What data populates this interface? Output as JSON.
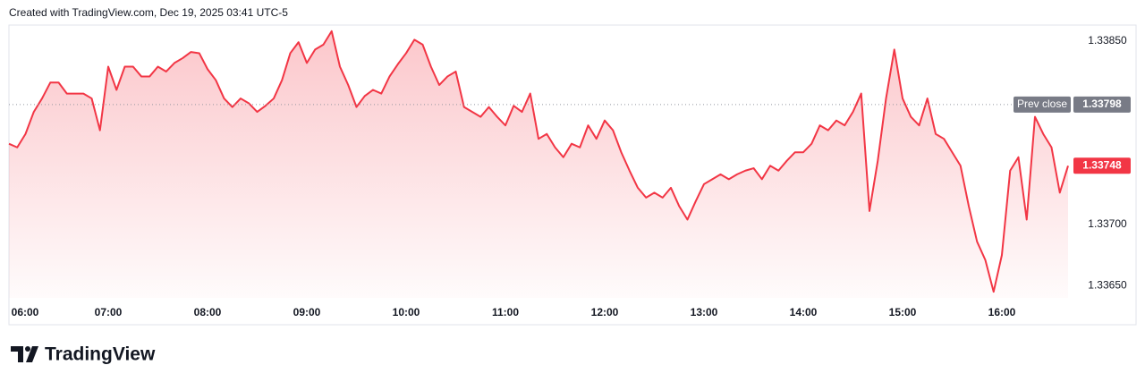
{
  "header": {
    "caption": "Created with TradingView.com, Dec 19, 2025 03:41 UTC-5"
  },
  "chart_data": {
    "type": "area",
    "categories": [
      "06:00",
      null,
      null,
      null,
      null,
      null,
      null,
      null,
      null,
      null,
      null,
      null,
      "07:00",
      null,
      null,
      null,
      null,
      null,
      null,
      null,
      null,
      null,
      null,
      null,
      "08:00",
      null,
      null,
      null,
      null,
      null,
      null,
      null,
      null,
      null,
      null,
      null,
      "09:00",
      null,
      null,
      null,
      null,
      null,
      null,
      null,
      null,
      null,
      null,
      null,
      "10:00",
      null,
      null,
      null,
      null,
      null,
      null,
      null,
      null,
      null,
      null,
      null,
      "11:00",
      null,
      null,
      null,
      null,
      null,
      null,
      null,
      null,
      null,
      null,
      null,
      "12:00",
      null,
      null,
      null,
      null,
      null,
      null,
      null,
      null,
      null,
      null,
      null,
      "13:00",
      null,
      null,
      null,
      null,
      null,
      null,
      null,
      null,
      null,
      null,
      null,
      "14:00",
      null,
      null,
      null,
      null,
      null,
      null,
      null,
      null,
      null,
      null,
      null,
      "15:00",
      null,
      null,
      null,
      null,
      null,
      null,
      null,
      null,
      null,
      null,
      null,
      "16:00",
      null,
      null,
      null,
      null,
      null,
      null,
      null,
      null
    ],
    "series": [
      {
        "color": "#f23645",
        "values": [
          1.33766,
          1.33763,
          1.33774,
          1.33792,
          1.33803,
          1.33816,
          1.33816,
          1.33807,
          1.33807,
          1.33807,
          1.33803,
          1.33777,
          1.33829,
          1.3381,
          1.33829,
          1.33829,
          1.33821,
          1.33821,
          1.33829,
          1.33825,
          1.33832,
          1.33836,
          1.33841,
          1.3384,
          1.33827,
          1.33818,
          1.33803,
          1.33796,
          1.33803,
          1.33799,
          1.33792,
          1.33797,
          1.33803,
          1.33818,
          1.3384,
          1.33849,
          1.33832,
          1.33843,
          1.33847,
          1.33858,
          1.33829,
          1.33814,
          1.33796,
          1.33805,
          1.3381,
          1.33807,
          1.33821,
          1.33831,
          1.3384,
          1.33851,
          1.33847,
          1.33829,
          1.33814,
          1.33821,
          1.33825,
          1.33796,
          1.33792,
          1.33788,
          1.33796,
          1.33788,
          1.33781,
          1.33797,
          1.33792,
          1.33807,
          1.3377,
          1.33774,
          1.33763,
          1.33755,
          1.33766,
          1.33763,
          1.33781,
          1.3377,
          1.33785,
          1.33777,
          1.33759,
          1.33744,
          1.3373,
          1.33722,
          1.33726,
          1.33722,
          1.3373,
          1.33715,
          1.33704,
          1.33719,
          1.33733,
          1.33737,
          1.33741,
          1.33737,
          1.33741,
          1.33744,
          1.33746,
          1.33737,
          1.33748,
          1.33744,
          1.33752,
          1.33759,
          1.33759,
          1.33766,
          1.33781,
          1.33777,
          1.33785,
          1.33781,
          1.33792,
          1.33807,
          1.33711,
          1.33752,
          1.33803,
          1.33843,
          1.33803,
          1.33788,
          1.33781,
          1.33803,
          1.33774,
          1.3377,
          1.33759,
          1.33748,
          1.33715,
          1.33686,
          1.33671,
          1.33645,
          1.33675,
          1.33744,
          1.33755,
          1.33704,
          1.33788,
          1.33774,
          1.33763,
          1.33726,
          1.33748
        ]
      }
    ],
    "ylim": [
      1.3364,
      1.33863
    ],
    "yticks": [
      {
        "value": 1.3365,
        "label": "1.33650"
      },
      {
        "value": 1.337,
        "label": "1.33700"
      },
      {
        "value": 1.3385,
        "label": "1.33850"
      }
    ],
    "grid": false,
    "prev_close": {
      "name": "Prev close",
      "value": 1.33798,
      "label": "1.33798"
    },
    "last_price": {
      "value": 1.33748,
      "label": "1.33748"
    }
  },
  "footer": {
    "logo": "TradingView"
  }
}
